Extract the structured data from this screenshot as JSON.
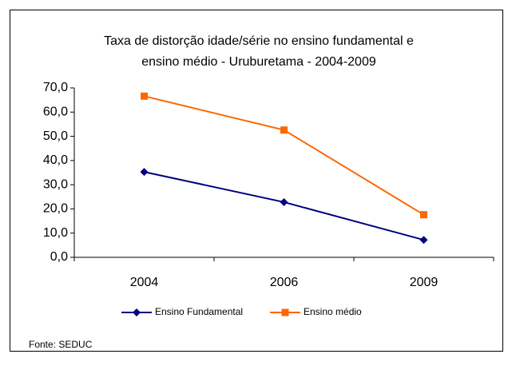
{
  "chart_data": {
    "type": "line",
    "title": [
      "Taxa de distorção idade/série no ensino fundamental e",
      "ensino médio - Uruburetama -  2004-2009"
    ],
    "categories": [
      "2004",
      "2006",
      "2009"
    ],
    "series": [
      {
        "name": "Ensino Fundamental",
        "color": "#000080",
        "marker": "diamond",
        "values": [
          35.3,
          22.8,
          7.2
        ]
      },
      {
        "name": "Ensino médio",
        "color": "#FF6600",
        "marker": "square",
        "values": [
          66.6,
          52.6,
          17.6
        ]
      }
    ],
    "ylim": [
      0,
      70
    ],
    "yticks": [
      {
        "value": 0,
        "label": "0,0"
      },
      {
        "value": 10,
        "label": "10,0"
      },
      {
        "value": 20,
        "label": "20,0"
      },
      {
        "value": 30,
        "label": "30,0"
      },
      {
        "value": 40,
        "label": "40,0"
      },
      {
        "value": 50,
        "label": "50,0"
      },
      {
        "value": 60,
        "label": "60,0"
      },
      {
        "value": 70,
        "label": "70,0"
      }
    ],
    "grid": false,
    "legend": "bottom",
    "source": "Fonte: SEDUC"
  }
}
